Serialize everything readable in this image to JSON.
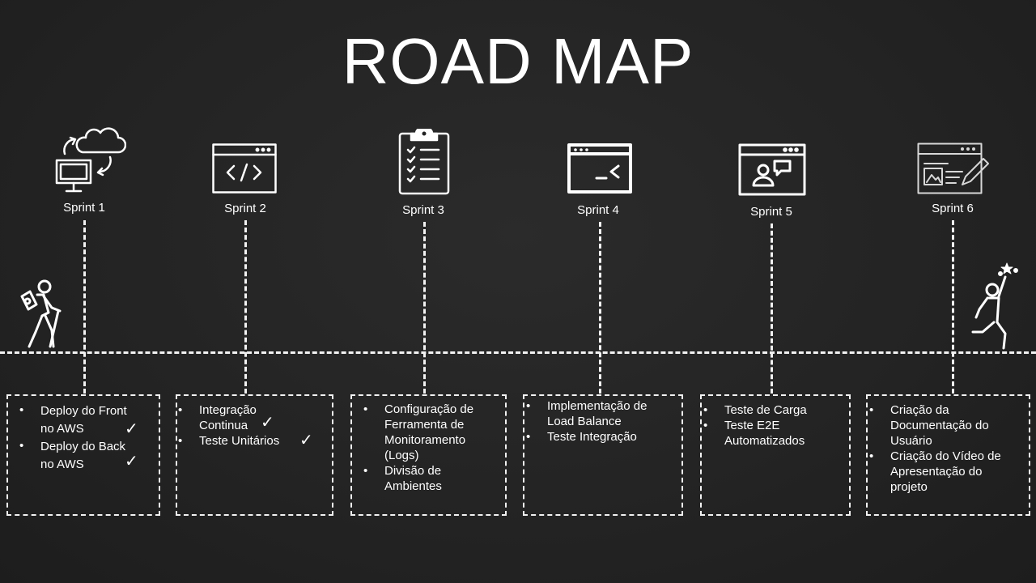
{
  "title": "ROAD MAP",
  "sprints": [
    {
      "label": "Sprint 1",
      "icon": "cloud-sync-monitor-icon",
      "items": [
        "Deploy do Front no AWS",
        "Deploy do Back no AWS"
      ],
      "checked": [
        true,
        true
      ]
    },
    {
      "label": "Sprint 2",
      "icon": "code-window-icon",
      "items": [
        "Integração Continua",
        "Teste Unitários"
      ],
      "checked": [
        true,
        true
      ]
    },
    {
      "label": "Sprint 3",
      "icon": "checklist-clipboard-icon",
      "items": [
        "Configuração de Ferramenta de Monitoramento (Logs)",
        "Divisão de Ambientes"
      ],
      "checked": [
        false,
        false
      ]
    },
    {
      "label": "Sprint 4",
      "icon": "terminal-window-icon",
      "items": [
        "Implementação de Load Balance",
        "Teste Integração"
      ],
      "checked": [
        false,
        false
      ]
    },
    {
      "label": "Sprint 5",
      "icon": "video-chat-window-icon",
      "items": [
        "Teste de Carga",
        "Teste E2E Automatizados"
      ],
      "checked": [
        false,
        false
      ]
    },
    {
      "label": "Sprint 6",
      "icon": "edit-document-window-icon",
      "items": [
        "Criação da Documentação do Usuário",
        "Criação do Vídeo de Apresentação do projeto"
      ],
      "checked": [
        false,
        false
      ]
    }
  ],
  "check_mark": "✓",
  "colors": {
    "background": "#232323",
    "foreground": "#ffffff"
  }
}
